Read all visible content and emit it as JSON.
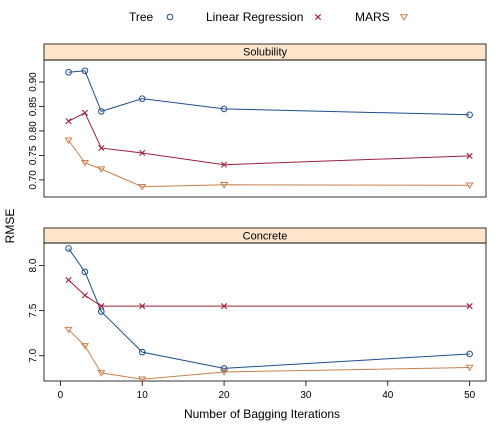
{
  "chart_data": {
    "type": "line",
    "xlabel": "Number of Bagging Iterations",
    "ylabel": "RMSE",
    "x_ticks": [
      0,
      10,
      20,
      30,
      40,
      50
    ],
    "xlim": [
      -2,
      52
    ],
    "legend": {
      "placement": "top",
      "entries": [
        {
          "label": "Tree",
          "color": "#1f4e8c",
          "marker": "circle"
        },
        {
          "label": "Linear Regression",
          "color": "#a0203a",
          "marker": "x"
        },
        {
          "label": "MARS",
          "color": "#c7824f",
          "marker": "triangle-down"
        }
      ]
    },
    "panels": [
      {
        "strip": "Solubility",
        "ylim": [
          0.665,
          0.945
        ],
        "y_ticks": [
          0.7,
          0.75,
          0.8,
          0.85,
          0.9
        ],
        "y_tick_labels": [
          "0.70",
          "0.75",
          "0.80",
          "0.85",
          "0.90"
        ],
        "series": [
          {
            "name": "Tree",
            "x": [
              1,
              3,
              5,
              10,
              20,
              50
            ],
            "y": [
              0.92,
              0.923,
              0.84,
              0.866,
              0.845,
              0.833
            ]
          },
          {
            "name": "Linear Regression",
            "x": [
              1,
              3,
              5,
              10,
              20,
              50
            ],
            "y": [
              0.82,
              0.837,
              0.765,
              0.755,
              0.731,
              0.749
            ]
          },
          {
            "name": "MARS",
            "x": [
              1,
              3,
              5,
              10,
              20,
              50
            ],
            "y": [
              0.781,
              0.735,
              0.722,
              0.686,
              0.69,
              0.689
            ]
          }
        ]
      },
      {
        "strip": "Concrete",
        "ylim": [
          6.72,
          8.25
        ],
        "y_ticks": [
          7.0,
          7.5,
          8.0
        ],
        "y_tick_labels": [
          "7.0",
          "7.5",
          "8.0"
        ],
        "series": [
          {
            "name": "Tree",
            "x": [
              1,
              3,
              5,
              10,
              20,
              50
            ],
            "y": [
              8.19,
              7.93,
              7.49,
              7.04,
              6.86,
              7.02
            ]
          },
          {
            "name": "Linear Regression",
            "x": [
              1,
              3,
              5,
              10,
              20,
              50
            ],
            "y": [
              7.84,
              7.67,
              7.55,
              7.55,
              7.55,
              7.55
            ]
          },
          {
            "name": "MARS",
            "x": [
              1,
              3,
              5,
              10,
              20,
              50
            ],
            "y": [
              7.29,
              7.11,
              6.81,
              6.74,
              6.82,
              6.87
            ]
          }
        ]
      }
    ]
  }
}
